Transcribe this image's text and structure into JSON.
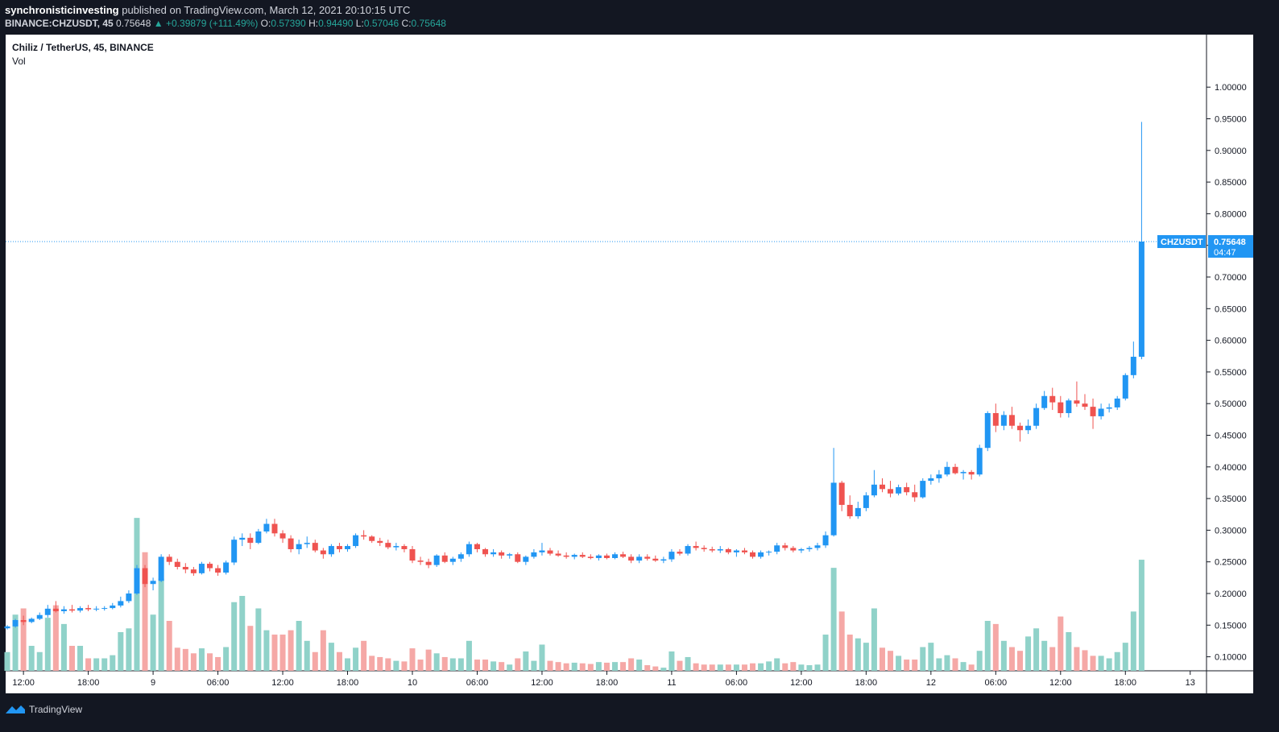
{
  "header": {
    "publisher": "synchronisticinvesting",
    "published_text": "published on TradingView.com, March 12, 2021 20:10:15 UTC",
    "symbol_line": "BINANCE:CHZUSDT, 45",
    "last": "0.75648",
    "change": "+0.39879 (+111.49%)",
    "o_label": "O:",
    "o_value": "0.57390",
    "h_label": "H:",
    "h_value": "0.94490",
    "l_label": "L:",
    "l_value": "0.57046",
    "c_label": "C:",
    "c_value": "0.75648"
  },
  "legend": {
    "title": "Chiliz / TetherUS, 45, BINANCE",
    "vol": "Vol"
  },
  "price_tag": {
    "symbol": "CHZUSDT",
    "price": "0.75648",
    "countdown": "04:47"
  },
  "footer": {
    "brand": "TradingView"
  },
  "colors": {
    "background": "#131722",
    "pane": "#ffffff",
    "up": "#2196f3",
    "down": "#ef5350",
    "vol_up": "#90d2c9",
    "vol_down": "#f5a8a6",
    "axis_text": "#131722",
    "price_line": "#2196f3"
  },
  "chart_data": {
    "type": "candlestick",
    "title": "Chiliz / TetherUS, 45, BINANCE",
    "interval_minutes": 45,
    "ylim": [
      0.05,
      1.03
    ],
    "y_ticks": [
      "0.10000",
      "0.15000",
      "0.20000",
      "0.25000",
      "0.30000",
      "0.35000",
      "0.40000",
      "0.45000",
      "0.50000",
      "0.55000",
      "0.60000",
      "0.65000",
      "0.70000",
      "0.75000",
      "0.80000",
      "0.85000",
      "0.90000",
      "0.95000",
      "1.00000"
    ],
    "x_ticks": [
      {
        "label": "12:00",
        "bar": 2
      },
      {
        "label": "18:00",
        "bar": 10
      },
      {
        "label": "9",
        "bar": 18
      },
      {
        "label": "06:00",
        "bar": 26
      },
      {
        "label": "12:00",
        "bar": 34
      },
      {
        "label": "18:00",
        "bar": 42
      },
      {
        "label": "10",
        "bar": 50
      },
      {
        "label": "06:00",
        "bar": 58
      },
      {
        "label": "12:00",
        "bar": 66
      },
      {
        "label": "18:00",
        "bar": 74
      },
      {
        "label": "11",
        "bar": 82
      },
      {
        "label": "06:00",
        "bar": 90
      },
      {
        "label": "12:00",
        "bar": 98
      },
      {
        "label": "18:00",
        "bar": 106
      },
      {
        "label": "12",
        "bar": 114
      },
      {
        "label": "06:00",
        "bar": 122
      },
      {
        "label": "12:00",
        "bar": 130
      },
      {
        "label": "18:00",
        "bar": 138
      },
      {
        "label": "13",
        "bar": 146
      }
    ],
    "bars_ohlcv": [
      [
        0.145,
        0.15,
        0.143,
        0.148,
        0.03
      ],
      [
        0.148,
        0.16,
        0.146,
        0.158,
        0.09
      ],
      [
        0.158,
        0.165,
        0.15,
        0.155,
        0.1
      ],
      [
        0.155,
        0.162,
        0.153,
        0.16,
        0.04
      ],
      [
        0.16,
        0.17,
        0.158,
        0.166,
        0.03
      ],
      [
        0.166,
        0.182,
        0.162,
        0.176,
        0.085
      ],
      [
        0.176,
        0.188,
        0.17,
        0.172,
        0.105
      ],
      [
        0.172,
        0.18,
        0.168,
        0.175,
        0.075
      ],
      [
        0.175,
        0.182,
        0.17,
        0.173,
        0.04
      ],
      [
        0.173,
        0.18,
        0.17,
        0.177,
        0.04
      ],
      [
        0.177,
        0.182,
        0.172,
        0.175,
        0.02
      ],
      [
        0.175,
        0.18,
        0.172,
        0.176,
        0.02
      ],
      [
        0.176,
        0.18,
        0.173,
        0.177,
        0.02
      ],
      [
        0.177,
        0.185,
        0.175,
        0.181,
        0.025
      ],
      [
        0.181,
        0.195,
        0.178,
        0.188,
        0.062
      ],
      [
        0.188,
        0.205,
        0.185,
        0.2,
        0.068
      ],
      [
        0.2,
        0.245,
        0.198,
        0.24,
        0.245
      ],
      [
        0.24,
        0.245,
        0.21,
        0.215,
        0.19
      ],
      [
        0.215,
        0.225,
        0.205,
        0.22,
        0.09
      ],
      [
        0.22,
        0.262,
        0.218,
        0.258,
        0.148
      ],
      [
        0.258,
        0.262,
        0.245,
        0.25,
        0.08
      ],
      [
        0.25,
        0.255,
        0.238,
        0.242,
        0.037
      ],
      [
        0.242,
        0.248,
        0.232,
        0.238,
        0.035
      ],
      [
        0.238,
        0.242,
        0.228,
        0.232,
        0.028
      ],
      [
        0.232,
        0.25,
        0.23,
        0.247,
        0.036
      ],
      [
        0.247,
        0.25,
        0.235,
        0.24,
        0.028
      ],
      [
        0.24,
        0.245,
        0.228,
        0.233,
        0.022
      ],
      [
        0.233,
        0.252,
        0.23,
        0.249,
        0.038
      ],
      [
        0.249,
        0.29,
        0.245,
        0.285,
        0.11
      ],
      [
        0.285,
        0.295,
        0.275,
        0.288,
        0.12
      ],
      [
        0.288,
        0.295,
        0.27,
        0.28,
        0.072
      ],
      [
        0.28,
        0.302,
        0.278,
        0.298,
        0.1
      ],
      [
        0.298,
        0.318,
        0.295,
        0.31,
        0.065
      ],
      [
        0.31,
        0.318,
        0.29,
        0.295,
        0.058
      ],
      [
        0.295,
        0.3,
        0.28,
        0.287,
        0.058
      ],
      [
        0.287,
        0.292,
        0.265,
        0.27,
        0.065
      ],
      [
        0.27,
        0.285,
        0.262,
        0.278,
        0.08
      ],
      [
        0.278,
        0.29,
        0.272,
        0.28,
        0.048
      ],
      [
        0.28,
        0.285,
        0.265,
        0.268,
        0.03
      ],
      [
        0.268,
        0.272,
        0.255,
        0.262,
        0.065
      ],
      [
        0.262,
        0.278,
        0.258,
        0.275,
        0.045
      ],
      [
        0.275,
        0.28,
        0.265,
        0.27,
        0.03
      ],
      [
        0.27,
        0.278,
        0.266,
        0.275,
        0.02
      ],
      [
        0.275,
        0.295,
        0.272,
        0.292,
        0.037
      ],
      [
        0.292,
        0.3,
        0.285,
        0.29,
        0.048
      ],
      [
        0.29,
        0.292,
        0.28,
        0.283,
        0.024
      ],
      [
        0.283,
        0.288,
        0.275,
        0.28,
        0.022
      ],
      [
        0.28,
        0.285,
        0.27,
        0.273,
        0.02
      ],
      [
        0.273,
        0.28,
        0.268,
        0.275,
        0.016
      ],
      [
        0.275,
        0.278,
        0.265,
        0.27,
        0.015
      ],
      [
        0.27,
        0.275,
        0.248,
        0.252,
        0.036
      ],
      [
        0.252,
        0.258,
        0.245,
        0.25,
        0.018
      ],
      [
        0.25,
        0.255,
        0.24,
        0.245,
        0.034
      ],
      [
        0.245,
        0.262,
        0.242,
        0.26,
        0.028
      ],
      [
        0.26,
        0.265,
        0.248,
        0.25,
        0.022
      ],
      [
        0.25,
        0.258,
        0.245,
        0.255,
        0.02
      ],
      [
        0.255,
        0.265,
        0.25,
        0.262,
        0.02
      ],
      [
        0.262,
        0.282,
        0.258,
        0.278,
        0.048
      ],
      [
        0.278,
        0.28,
        0.265,
        0.27,
        0.018
      ],
      [
        0.27,
        0.272,
        0.258,
        0.262,
        0.018
      ],
      [
        0.262,
        0.27,
        0.258,
        0.265,
        0.015
      ],
      [
        0.265,
        0.268,
        0.255,
        0.26,
        0.014
      ],
      [
        0.26,
        0.264,
        0.255,
        0.262,
        0.01
      ],
      [
        0.262,
        0.265,
        0.248,
        0.25,
        0.02
      ],
      [
        0.25,
        0.26,
        0.245,
        0.258,
        0.031
      ],
      [
        0.258,
        0.27,
        0.255,
        0.265,
        0.016
      ],
      [
        0.265,
        0.28,
        0.26,
        0.268,
        0.042
      ],
      [
        0.268,
        0.272,
        0.26,
        0.263,
        0.016
      ],
      [
        0.263,
        0.268,
        0.258,
        0.26,
        0.014
      ],
      [
        0.26,
        0.265,
        0.255,
        0.258,
        0.012
      ],
      [
        0.258,
        0.263,
        0.254,
        0.261,
        0.013
      ],
      [
        0.261,
        0.265,
        0.256,
        0.258,
        0.012
      ],
      [
        0.258,
        0.262,
        0.254,
        0.256,
        0.011
      ],
      [
        0.256,
        0.262,
        0.252,
        0.26,
        0.014
      ],
      [
        0.26,
        0.263,
        0.254,
        0.256,
        0.013
      ],
      [
        0.256,
        0.265,
        0.254,
        0.262,
        0.014
      ],
      [
        0.262,
        0.266,
        0.256,
        0.258,
        0.014
      ],
      [
        0.258,
        0.262,
        0.248,
        0.252,
        0.02
      ],
      [
        0.252,
        0.262,
        0.248,
        0.258,
        0.018
      ],
      [
        0.258,
        0.262,
        0.252,
        0.255,
        0.009
      ],
      [
        0.255,
        0.26,
        0.25,
        0.252,
        0.007
      ],
      [
        0.252,
        0.258,
        0.248,
        0.254,
        0.005
      ],
      [
        0.254,
        0.27,
        0.25,
        0.266,
        0.031
      ],
      [
        0.266,
        0.27,
        0.26,
        0.263,
        0.016
      ],
      [
        0.263,
        0.278,
        0.26,
        0.275,
        0.022
      ],
      [
        0.275,
        0.282,
        0.268,
        0.272,
        0.012
      ],
      [
        0.272,
        0.276,
        0.266,
        0.27,
        0.01
      ],
      [
        0.27,
        0.274,
        0.265,
        0.268,
        0.01
      ],
      [
        0.268,
        0.275,
        0.264,
        0.27,
        0.01
      ],
      [
        0.27,
        0.272,
        0.262,
        0.265,
        0.01
      ],
      [
        0.265,
        0.27,
        0.258,
        0.268,
        0.01
      ],
      [
        0.268,
        0.272,
        0.262,
        0.265,
        0.01
      ],
      [
        0.265,
        0.268,
        0.255,
        0.258,
        0.012
      ],
      [
        0.258,
        0.268,
        0.255,
        0.265,
        0.012
      ],
      [
        0.265,
        0.268,
        0.26,
        0.266,
        0.015
      ],
      [
        0.266,
        0.28,
        0.262,
        0.276,
        0.02
      ],
      [
        0.276,
        0.28,
        0.268,
        0.272,
        0.012
      ],
      [
        0.272,
        0.275,
        0.265,
        0.268,
        0.014
      ],
      [
        0.268,
        0.272,
        0.264,
        0.27,
        0.01
      ],
      [
        0.27,
        0.275,
        0.266,
        0.272,
        0.009
      ],
      [
        0.272,
        0.28,
        0.268,
        0.276,
        0.01
      ],
      [
        0.276,
        0.298,
        0.272,
        0.292,
        0.058
      ],
      [
        0.292,
        0.43,
        0.29,
        0.375,
        0.165
      ],
      [
        0.375,
        0.378,
        0.33,
        0.34,
        0.095
      ],
      [
        0.34,
        0.355,
        0.318,
        0.322,
        0.058
      ],
      [
        0.322,
        0.345,
        0.318,
        0.335,
        0.052
      ],
      [
        0.335,
        0.36,
        0.33,
        0.355,
        0.045
      ],
      [
        0.355,
        0.395,
        0.352,
        0.372,
        0.1
      ],
      [
        0.372,
        0.382,
        0.36,
        0.365,
        0.037
      ],
      [
        0.365,
        0.378,
        0.352,
        0.358,
        0.032
      ],
      [
        0.358,
        0.372,
        0.355,
        0.368,
        0.024
      ],
      [
        0.368,
        0.375,
        0.355,
        0.36,
        0.018
      ],
      [
        0.36,
        0.372,
        0.345,
        0.352,
        0.018
      ],
      [
        0.352,
        0.382,
        0.35,
        0.378,
        0.038
      ],
      [
        0.378,
        0.388,
        0.372,
        0.382,
        0.045
      ],
      [
        0.382,
        0.395,
        0.375,
        0.388,
        0.02
      ],
      [
        0.388,
        0.408,
        0.385,
        0.4,
        0.025
      ],
      [
        0.4,
        0.405,
        0.388,
        0.39,
        0.02
      ],
      [
        0.39,
        0.395,
        0.38,
        0.392,
        0.014
      ],
      [
        0.392,
        0.395,
        0.38,
        0.388,
        0.01
      ],
      [
        0.388,
        0.435,
        0.385,
        0.43,
        0.032
      ],
      [
        0.43,
        0.488,
        0.425,
        0.485,
        0.08
      ],
      [
        0.485,
        0.5,
        0.455,
        0.465,
        0.075
      ],
      [
        0.465,
        0.488,
        0.458,
        0.482,
        0.048
      ],
      [
        0.482,
        0.495,
        0.46,
        0.465,
        0.038
      ],
      [
        0.465,
        0.47,
        0.44,
        0.458,
        0.032
      ],
      [
        0.458,
        0.475,
        0.452,
        0.465,
        0.055
      ],
      [
        0.465,
        0.5,
        0.46,
        0.493,
        0.068
      ],
      [
        0.493,
        0.52,
        0.49,
        0.512,
        0.048
      ],
      [
        0.512,
        0.525,
        0.49,
        0.502,
        0.038
      ],
      [
        0.502,
        0.512,
        0.478,
        0.485,
        0.087
      ],
      [
        0.485,
        0.508,
        0.478,
        0.505,
        0.062
      ],
      [
        0.505,
        0.535,
        0.495,
        0.5,
        0.038
      ],
      [
        0.5,
        0.515,
        0.49,
        0.495,
        0.033
      ],
      [
        0.495,
        0.508,
        0.46,
        0.48,
        0.024
      ],
      [
        0.48,
        0.5,
        0.475,
        0.492,
        0.024
      ],
      [
        0.492,
        0.5,
        0.486,
        0.494,
        0.02
      ],
      [
        0.494,
        0.512,
        0.49,
        0.508,
        0.03
      ],
      [
        0.508,
        0.548,
        0.505,
        0.545,
        0.045
      ],
      [
        0.545,
        0.598,
        0.54,
        0.574,
        0.095
      ],
      [
        0.574,
        0.945,
        0.57,
        0.756,
        0.178
      ]
    ]
  }
}
